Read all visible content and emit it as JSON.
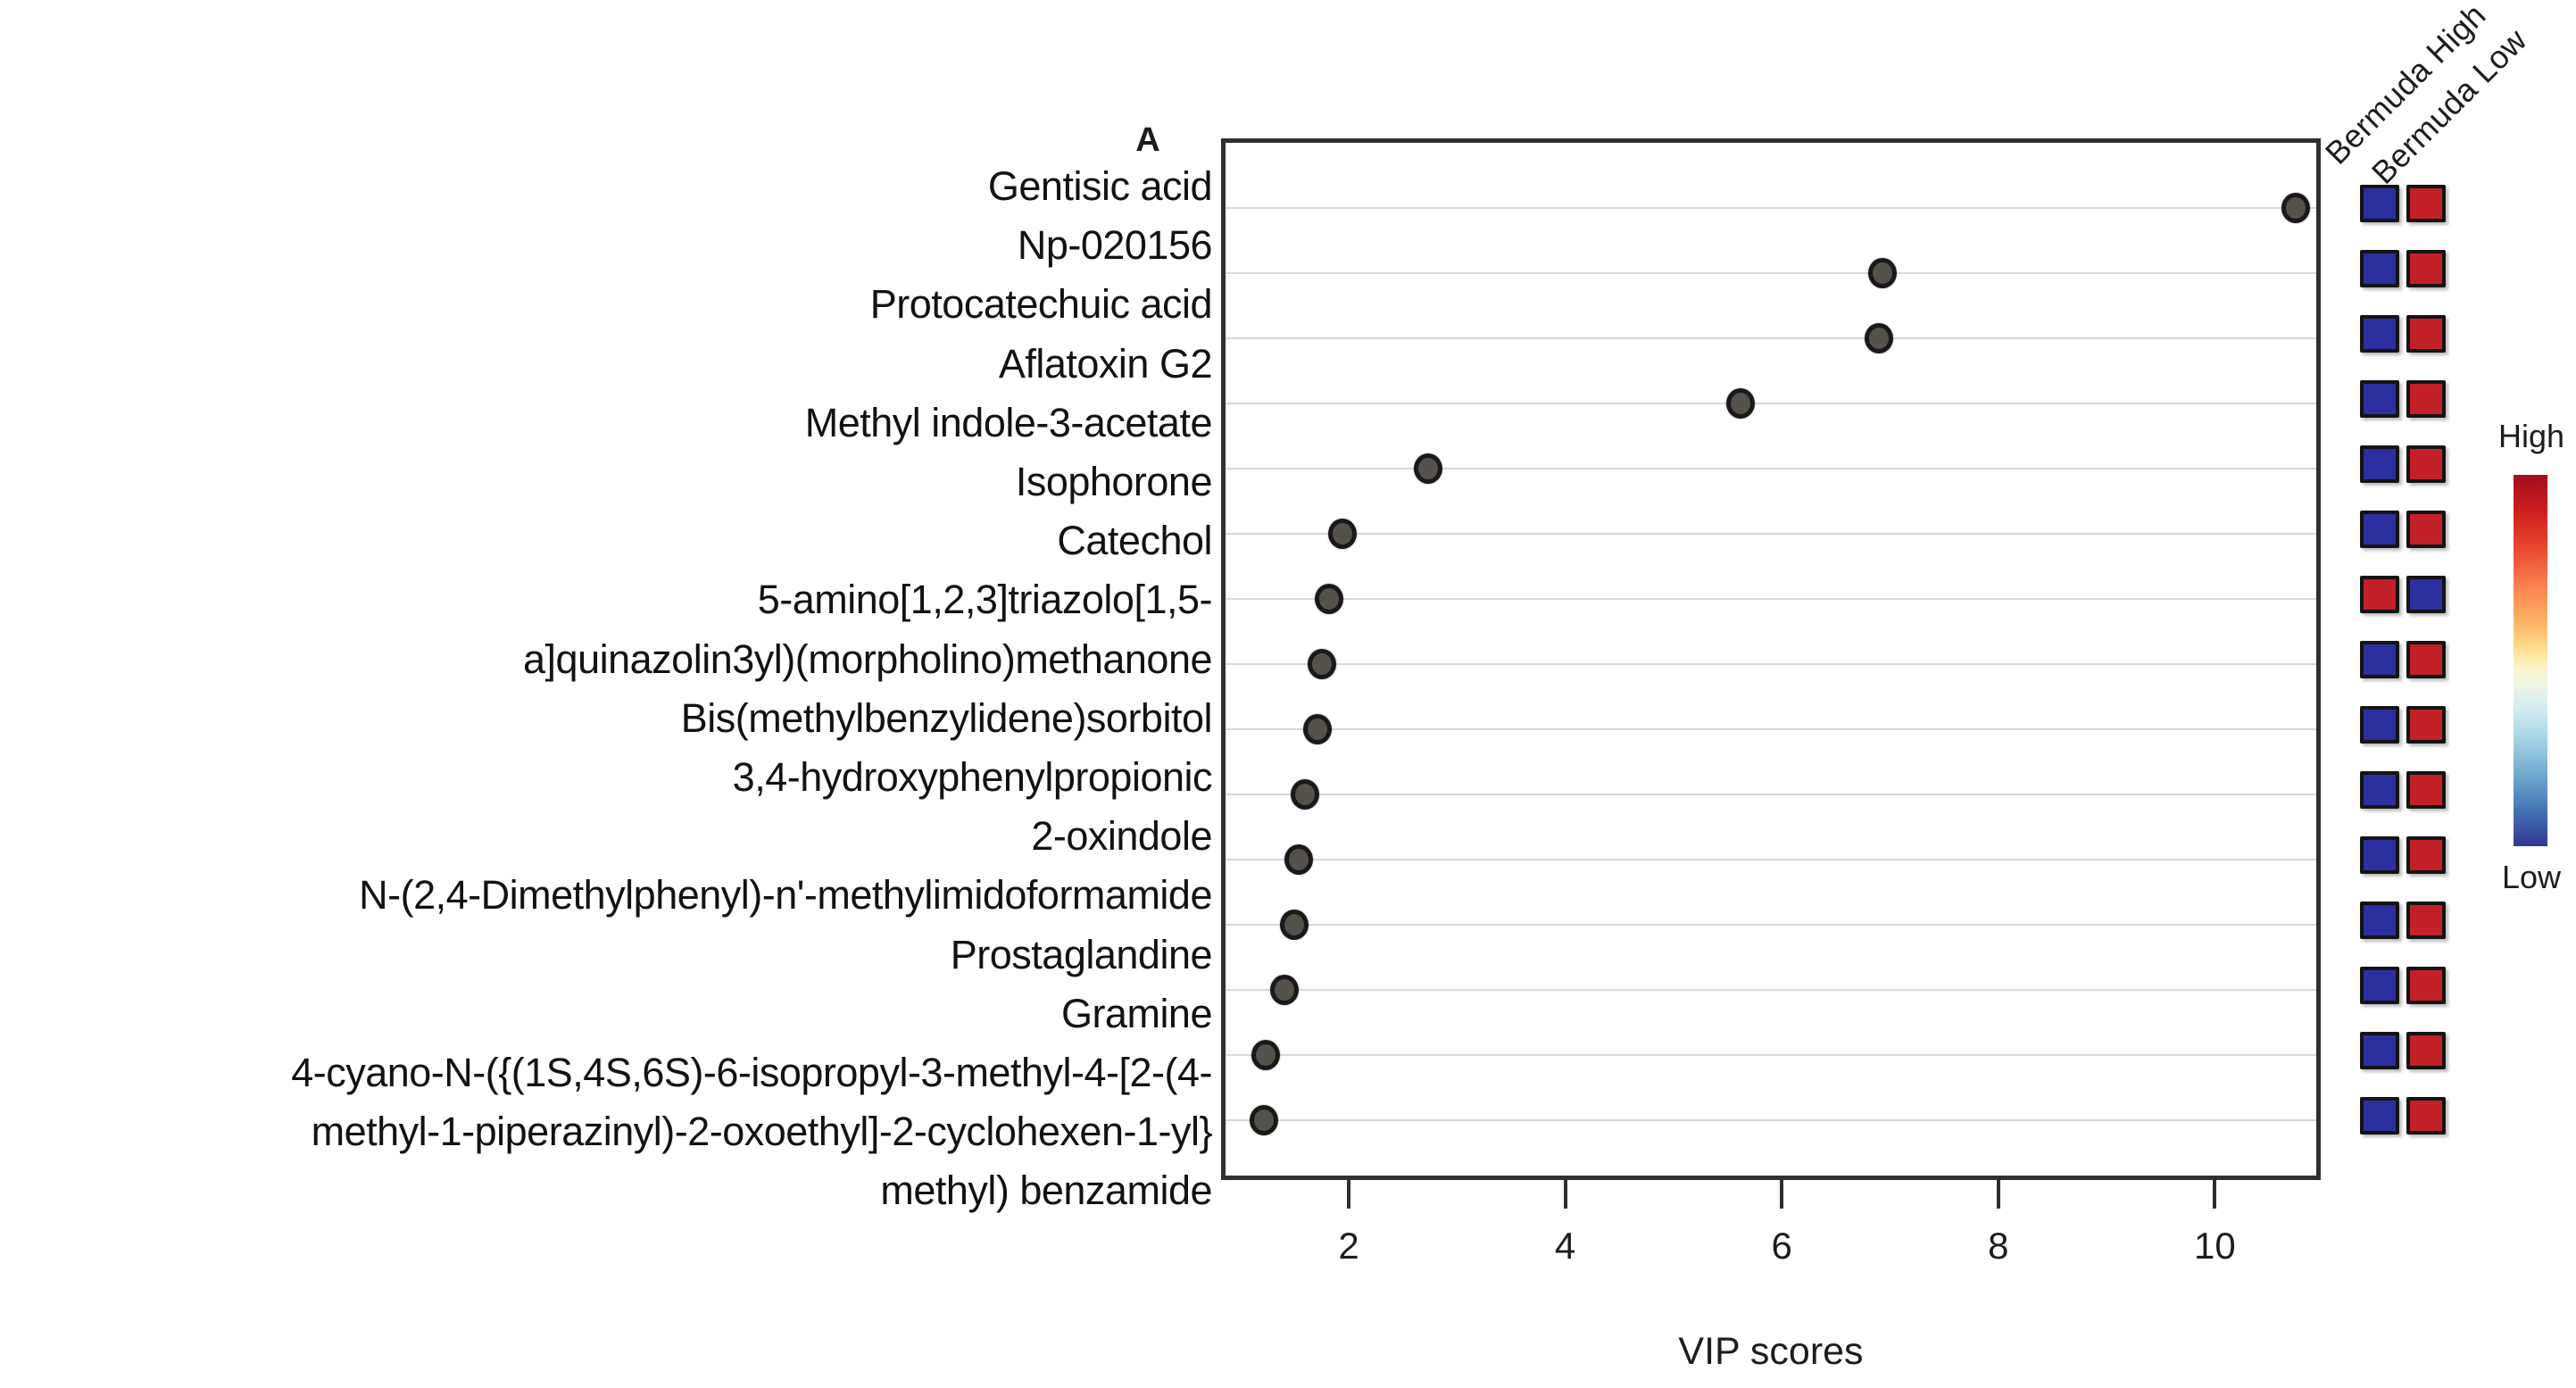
{
  "panel_label": "A",
  "axis": {
    "x_title": "VIP scores",
    "ticks": [
      "2",
      "4",
      "6",
      "8",
      "10"
    ],
    "tick_values": [
      2,
      4,
      6,
      8,
      10
    ]
  },
  "heatmap_header": {
    "col1": "Bermuda High",
    "col2": "Bermuda Low"
  },
  "gradient_legend": {
    "high_label": "High",
    "low_label": "Low"
  },
  "colors": {
    "square_blue": "#2b2f9f",
    "square_red": "#c32027",
    "dot_fill": "#55514b",
    "dot_stroke": "#191919",
    "gridline": "#d8d8d8",
    "plot_border": "#2f2f2f",
    "gradient_top_red": "#a30d1c",
    "gradient_bottom_blue": "#313695"
  },
  "rows": [
    {
      "label_lines": [
        "Gentisic acid"
      ],
      "vip": 10.75,
      "bermuda_high": "blue",
      "bermuda_low": "red"
    },
    {
      "label_lines": [
        "Np-020156"
      ],
      "vip": 6.93,
      "bermuda_high": "blue",
      "bermuda_low": "red"
    },
    {
      "label_lines": [
        "Protocatechuic acid"
      ],
      "vip": 6.9,
      "bermuda_high": "blue",
      "bermuda_low": "red"
    },
    {
      "label_lines": [
        "Aflatoxin G2"
      ],
      "vip": 5.62,
      "bermuda_high": "blue",
      "bermuda_low": "red"
    },
    {
      "label_lines": [
        "Methyl indole-3-acetate"
      ],
      "vip": 2.73,
      "bermuda_high": "blue",
      "bermuda_low": "red"
    },
    {
      "label_lines": [
        "Isophorone"
      ],
      "vip": 1.94,
      "bermuda_high": "blue",
      "bermuda_low": "red"
    },
    {
      "label_lines": [
        "Catechol"
      ],
      "vip": 1.82,
      "bermuda_high": "red",
      "bermuda_low": "blue"
    },
    {
      "label_lines": [
        "5-amino[1,2,3]triazolo[1,5-",
        "a]quinazolin3yl)(morpholino)methanone"
      ],
      "vip": 1.75,
      "bermuda_high": "blue",
      "bermuda_low": "red"
    },
    {
      "label_lines": [
        "Bis(methylbenzylidene)sorbitol"
      ],
      "vip": 1.71,
      "bermuda_high": "blue",
      "bermuda_low": "red"
    },
    {
      "label_lines": [
        "3,4-hydroxyphenylpropionic"
      ],
      "vip": 1.6,
      "bermuda_high": "blue",
      "bermuda_low": "red"
    },
    {
      "label_lines": [
        "2-oxindole"
      ],
      "vip": 1.54,
      "bermuda_high": "blue",
      "bermuda_low": "red"
    },
    {
      "label_lines": [
        "N-(2,4-Dimethylphenyl)-n'-methylimidoformamide"
      ],
      "vip": 1.5,
      "bermuda_high": "blue",
      "bermuda_low": "red"
    },
    {
      "label_lines": [
        "Prostaglandine"
      ],
      "vip": 1.41,
      "bermuda_high": "blue",
      "bermuda_low": "red"
    },
    {
      "label_lines": [
        "Gramine"
      ],
      "vip": 1.23,
      "bermuda_high": "blue",
      "bermuda_low": "red"
    },
    {
      "label_lines": [
        "4-cyano-N-({(1S,4S,6S)-6-isopropyl-3-methyl-4-[2-(4-",
        "methyl-1-piperazinyl)-2-oxoethyl]-2-cyclohexen-1-yl}",
        "methyl) benzamide"
      ],
      "vip": 1.22,
      "bermuda_high": "blue",
      "bermuda_low": "red"
    }
  ],
  "chart_data": {
    "type": "scatter",
    "title": "A",
    "xlabel": "VIP scores",
    "ylabel": "",
    "xlim": [
      0.85,
      11.0
    ],
    "x_ticks": [
      2,
      4,
      6,
      8,
      10
    ],
    "grid": "horizontal",
    "legend_position": "right",
    "categories": [
      "Gentisic acid",
      "Np-020156",
      "Protocatechuic acid",
      "Aflatoxin G2",
      "Methyl indole-3-acetate",
      "Isophorone",
      "Catechol",
      "5-amino[1,2,3]triazolo[1,5-a]quinazolin3yl)(morpholino)methanone",
      "Bis(methylbenzylidene)sorbitol",
      "3,4-hydroxyphenylpropionic",
      "2-oxindole",
      "N-(2,4-Dimethylphenyl)-n'-methylimidoformamide",
      "Prostaglandine",
      "Gramine",
      "4-cyano-N-({(1S,4S,6S)-6-isopropyl-3-methyl-4-[2-(4-methyl-1-piperazinyl)-2-oxoethyl]-2-cyclohexen-1-yl}methyl) benzamide"
    ],
    "series": [
      {
        "name": "VIP score",
        "values": [
          10.75,
          6.93,
          6.9,
          5.62,
          2.73,
          1.94,
          1.82,
          1.75,
          1.71,
          1.6,
          1.54,
          1.5,
          1.41,
          1.23,
          1.22
        ]
      }
    ],
    "heatmap": {
      "columns": [
        "Bermuda High",
        "Bermuda Low"
      ],
      "scale": {
        "high": "red",
        "low": "blue"
      },
      "cells": [
        [
          "low",
          "high"
        ],
        [
          "low",
          "high"
        ],
        [
          "low",
          "high"
        ],
        [
          "low",
          "high"
        ],
        [
          "low",
          "high"
        ],
        [
          "low",
          "high"
        ],
        [
          "high",
          "low"
        ],
        [
          "low",
          "high"
        ],
        [
          "low",
          "high"
        ],
        [
          "low",
          "high"
        ],
        [
          "low",
          "high"
        ],
        [
          "low",
          "high"
        ],
        [
          "low",
          "high"
        ],
        [
          "low",
          "high"
        ],
        [
          "low",
          "high"
        ]
      ]
    }
  }
}
